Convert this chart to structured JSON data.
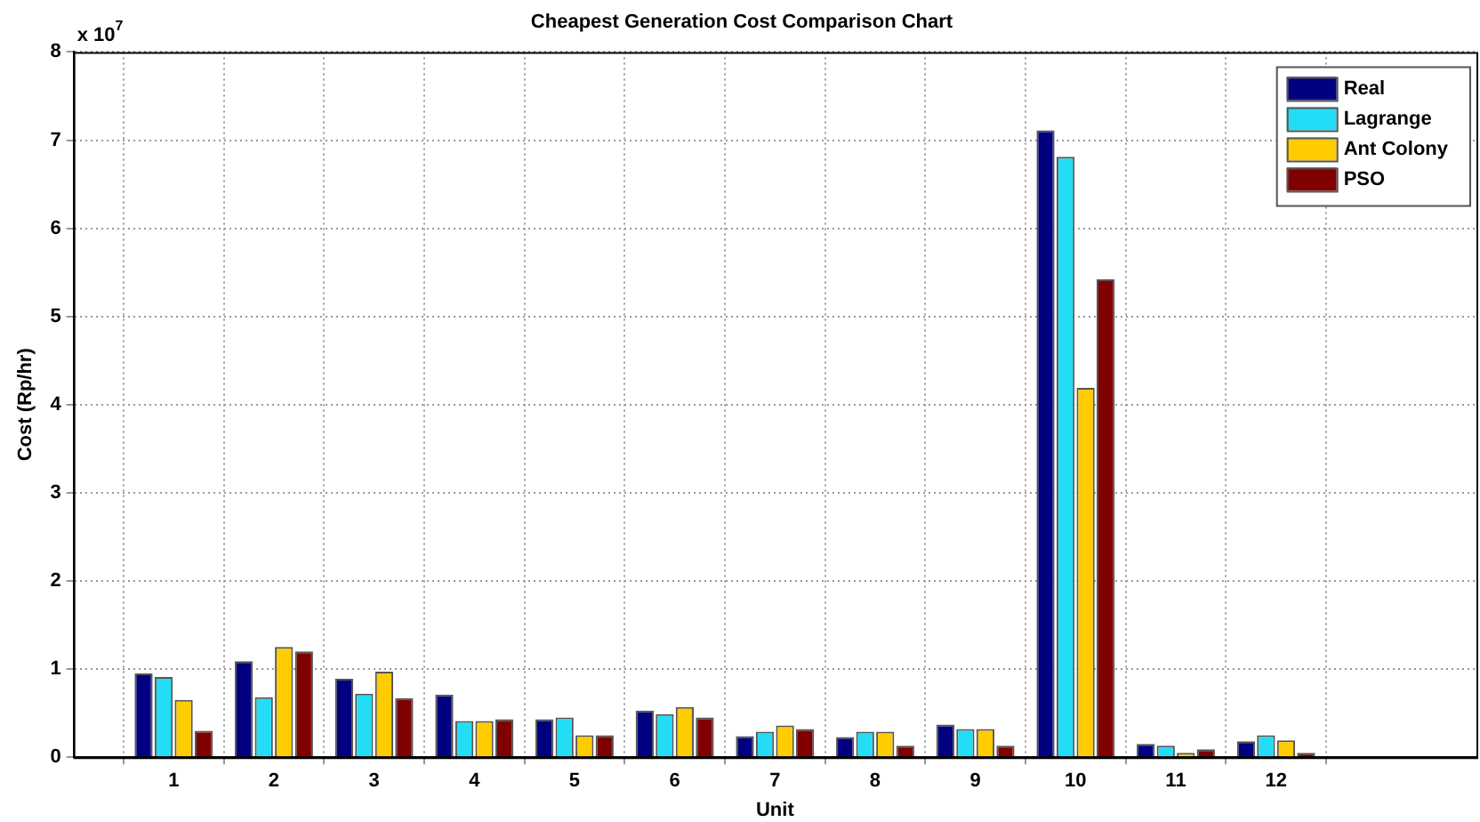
{
  "chart_data": {
    "type": "bar",
    "title": "Cheapest Generation Cost Comparison Chart",
    "xlabel": "Unit",
    "ylabel": "Cost (Rp/hr)",
    "annotations": [
      "x 10$^{7}$"
    ],
    "x": [
      1,
      2,
      3,
      4,
      5,
      6,
      7,
      8,
      9,
      10,
      11,
      12
    ],
    "xlim": [
      0,
      14
    ],
    "xticks": [
      1,
      2,
      3,
      4,
      5,
      6,
      7,
      8,
      9,
      10,
      11,
      12
    ],
    "ylim": [
      0,
      8
    ],
    "yticks": [
      0,
      1,
      2,
      3,
      4,
      5,
      6,
      7,
      8
    ],
    "series": [
      {
        "name": "Real",
        "color": "#000080",
        "values": [
          0.95,
          1.09,
          0.89,
          0.71,
          0.43,
          0.53,
          0.24,
          0.23,
          0.37,
          7.11,
          0.15,
          0.18
        ]
      },
      {
        "name": "Lagrange",
        "color": "#22ddf5",
        "values": [
          0.91,
          0.68,
          0.72,
          0.41,
          0.45,
          0.49,
          0.29,
          0.29,
          0.32,
          6.81,
          0.13,
          0.25
        ]
      },
      {
        "name": "Ant Colony",
        "color": "#ffcc00",
        "values": [
          0.65,
          1.25,
          0.97,
          0.41,
          0.25,
          0.57,
          0.36,
          0.29,
          0.32,
          4.19,
          0.05,
          0.19
        ]
      },
      {
        "name": "PSO",
        "color": "#800000",
        "values": [
          0.3,
          1.2,
          0.67,
          0.43,
          0.25,
          0.45,
          0.32,
          0.13,
          0.13,
          5.42,
          0.09,
          0.05
        ]
      }
    ],
    "grid": true,
    "legend": "top right"
  }
}
